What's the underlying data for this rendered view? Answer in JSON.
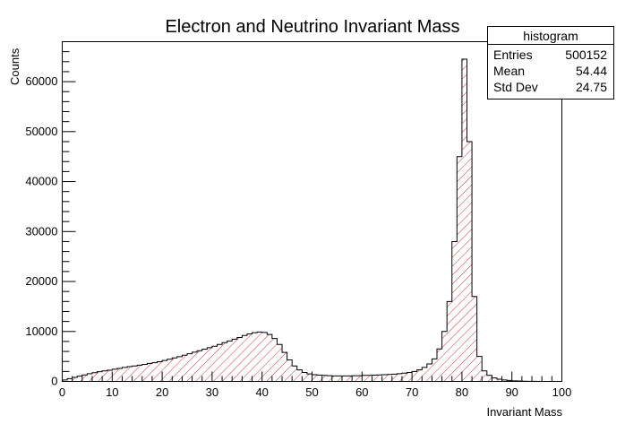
{
  "chart_data": {
    "type": "bar",
    "title": "Electron and Neutrino Invariant Mass",
    "xlabel": "Invariant Mass",
    "ylabel": "Counts",
    "xlim": [
      0,
      100
    ],
    "ylim": [
      0,
      68000
    ],
    "x_ticks": [
      0,
      10,
      20,
      30,
      40,
      50,
      60,
      70,
      80,
      90,
      100
    ],
    "y_ticks": [
      0,
      10000,
      20000,
      30000,
      40000,
      50000,
      60000
    ],
    "grid": false,
    "fill": "red diagonal hatch",
    "colors": {
      "hatch": "#cc3333",
      "outline": "#000000"
    },
    "bin_width": 1,
    "bins_x_start": 0,
    "values": [
      300,
      550,
      800,
      1050,
      1300,
      1550,
      1750,
      1950,
      2100,
      2250,
      2450,
      2600,
      2800,
      2950,
      3100,
      3250,
      3400,
      3600,
      3750,
      3950,
      4200,
      4450,
      4700,
      4950,
      5250,
      5550,
      5850,
      6150,
      6450,
      6750,
      7050,
      7400,
      7750,
      8100,
      8450,
      8800,
      9200,
      9500,
      9750,
      9900,
      9800,
      9400,
      8600,
      7400,
      5800,
      4300,
      3100,
      2300,
      1800,
      1500,
      1350,
      1250,
      1200,
      1150,
      1100,
      1100,
      1100,
      1100,
      1150,
      1150,
      1200,
      1200,
      1250,
      1300,
      1350,
      1400,
      1450,
      1550,
      1650,
      1800,
      2000,
      2300,
      2800,
      3500,
      4500,
      6500,
      10000,
      16000,
      28000,
      45000,
      64500,
      48000,
      17000,
      5000,
      2100,
      1200,
      700,
      450,
      300,
      200,
      120,
      80,
      50,
      30,
      20,
      10,
      5,
      0,
      0,
      0
    ],
    "stats_box": {
      "title": "histogram",
      "rows": [
        {
          "label": "Entries",
          "value": "500152"
        },
        {
          "label": "Mean",
          "value": "54.44"
        },
        {
          "label": "Std Dev",
          "value": "24.75"
        }
      ]
    }
  }
}
